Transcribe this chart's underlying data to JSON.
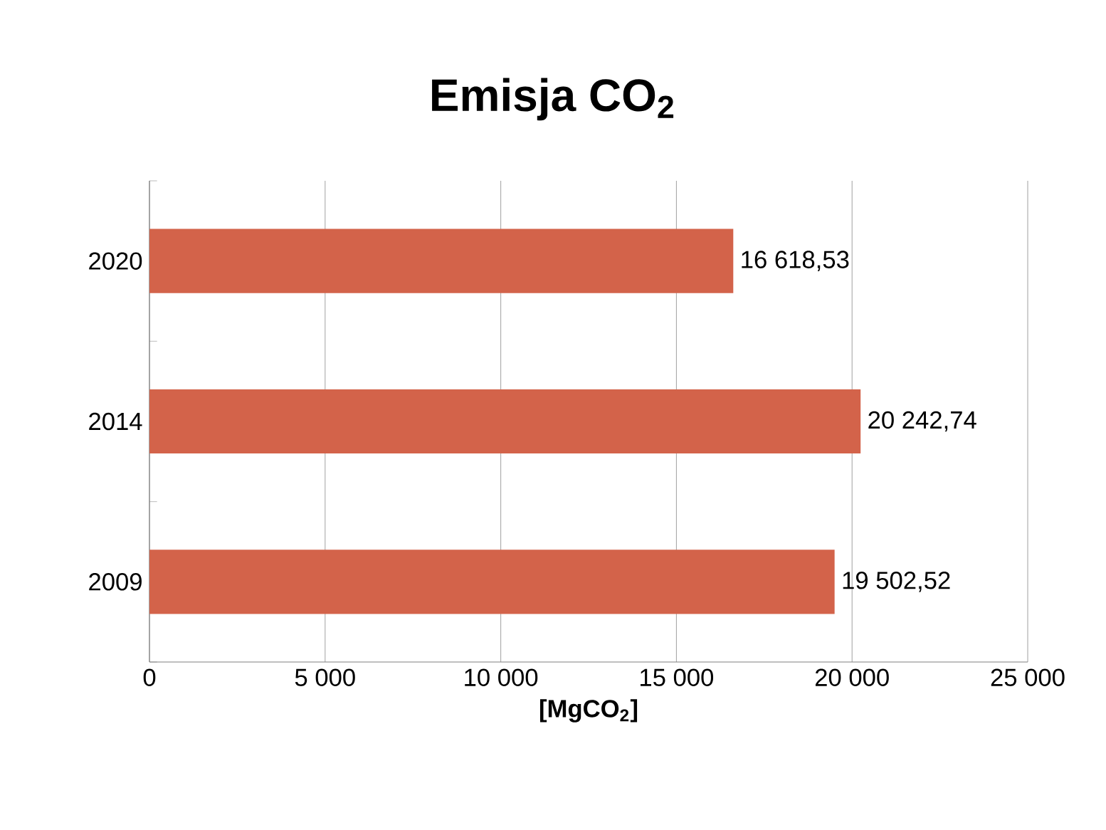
{
  "chart_data": {
    "type": "bar",
    "orientation": "horizontal",
    "title": "Emisja CO$_{2}$",
    "xlabel": "[MgCO$_{2}$]",
    "categories": [
      "2020",
      "2014",
      "2009"
    ],
    "values": [
      16618.53,
      20242.74,
      19502.52
    ],
    "value_labels": [
      "16 618,53",
      "20 242,74",
      "19 502,52"
    ],
    "color": "#d3634a",
    "xlim": [
      0,
      25000
    ],
    "xticks": [
      0,
      {
        "value": 5000,
        "label": "5 000"
      },
      {
        "value": 10000,
        "label": "10 000"
      },
      {
        "value": 15000,
        "label": "15 000"
      },
      {
        "value": 20000,
        "label": "20 000"
      },
      {
        "value": 25000,
        "label": "25 000"
      }
    ],
    "grid": "x"
  }
}
